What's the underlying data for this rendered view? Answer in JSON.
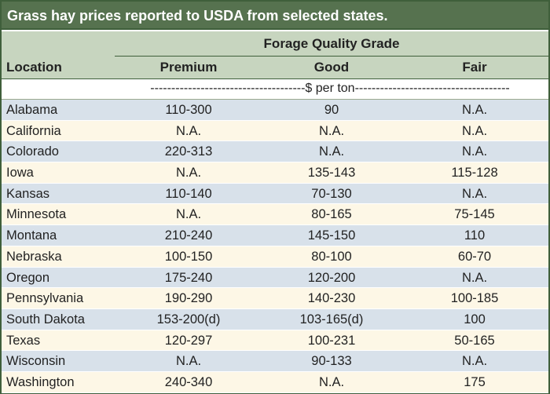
{
  "title": "Grass hay prices reported to USDA from selected states.",
  "header": {
    "group": "Forage Quality Grade",
    "location": "Location",
    "columns": [
      "Premium",
      "Good",
      "Fair"
    ],
    "unit": "-------------------------------------$ per ton-------------------------------------"
  },
  "rows": [
    {
      "location": "Alabama",
      "premium": "110-300",
      "good": "90",
      "fair": "N.A."
    },
    {
      "location": "California",
      "premium": "N.A.",
      "good": "N.A.",
      "fair": "N.A."
    },
    {
      "location": "Colorado",
      "premium": "220-313",
      "good": "N.A.",
      "fair": "N.A."
    },
    {
      "location": "Iowa",
      "premium": "N.A.",
      "good": "135-143",
      "fair": "115-128"
    },
    {
      "location": "Kansas",
      "premium": "110-140",
      "good": "70-130",
      "fair": "N.A."
    },
    {
      "location": "Minnesota",
      "premium": "N.A.",
      "good": "80-165",
      "fair": "75-145"
    },
    {
      "location": "Montana",
      "premium": "210-240",
      "good": "145-150",
      "fair": "110"
    },
    {
      "location": "Nebraska",
      "premium": "100-150",
      "good": "80-100",
      "fair": "60-70"
    },
    {
      "location": "Oregon",
      "premium": "175-240",
      "good": "120-200",
      "fair": "N.A."
    },
    {
      "location": "Pennsylvania",
      "premium": "190-290",
      "good": "140-230",
      "fair": "100-185"
    },
    {
      "location": "South Dakota",
      "premium": "153-200(d)",
      "good": "103-165(d)",
      "fair": "100"
    },
    {
      "location": "Texas",
      "premium": "120-297",
      "good": "100-231",
      "fair": "50-165"
    },
    {
      "location": "Wisconsin",
      "premium": "N.A.",
      "good": "90-133",
      "fair": "N.A."
    },
    {
      "location": "Washington",
      "premium": "240-340",
      "good": "N.A.",
      "fair": "175"
    }
  ],
  "colors": {
    "title_bg": "#56724f",
    "header_bg": "#c7d5bf",
    "row_blue": "#d8e1ea",
    "row_cream": "#fdf7e6"
  }
}
